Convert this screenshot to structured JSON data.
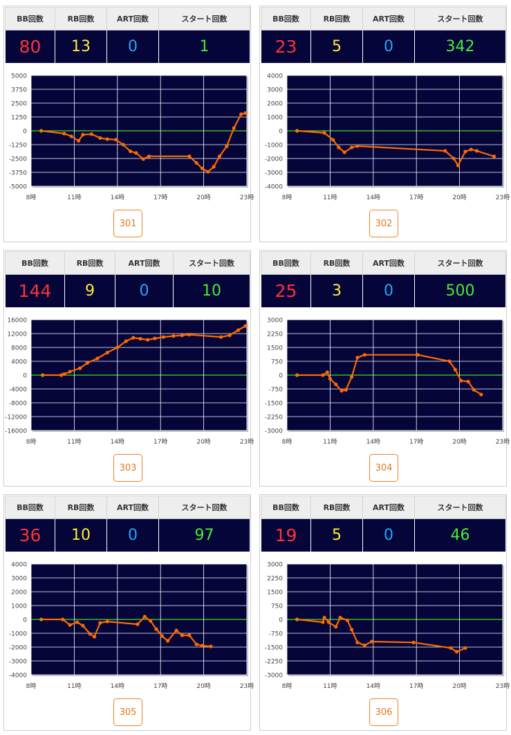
{
  "headers": {
    "bb": "BB回数",
    "rb": "RB回数",
    "art": "ART回数",
    "start": "スタート回数"
  },
  "colors": {
    "bb": "#ff3333",
    "rb": "#ffee33",
    "art": "#22a8ff",
    "start": "#44ee33",
    "plot_bg": "#05053a",
    "grid": "#ffffff",
    "zero_line": "#44dd22",
    "line": "#ff6a00"
  },
  "x_ticks": [
    "8時",
    "11時",
    "14時",
    "17時",
    "20時",
    "23時"
  ],
  "machines": [
    {
      "id": "301",
      "bb": "80",
      "rb": "13",
      "art": "0",
      "start": "1",
      "chart_data": {
        "type": "line",
        "x_range": [
          8,
          23
        ],
        "ylim": [
          -5000,
          5000
        ],
        "y_ticks": [
          "5000",
          "3750",
          "2500",
          "1250",
          "0",
          "-1250",
          "-2500",
          "-3750",
          "-5000"
        ],
        "points": [
          [
            8.7,
            0
          ],
          [
            10.3,
            -250
          ],
          [
            10.8,
            -500
          ],
          [
            11.3,
            -900
          ],
          [
            11.6,
            -350
          ],
          [
            12.2,
            -300
          ],
          [
            12.8,
            -650
          ],
          [
            13.3,
            -750
          ],
          [
            13.9,
            -800
          ],
          [
            14.4,
            -1250
          ],
          [
            14.9,
            -1850
          ],
          [
            15.3,
            -2000
          ],
          [
            15.8,
            -2550
          ],
          [
            16.2,
            -2300
          ],
          [
            19.0,
            -2300
          ],
          [
            19.5,
            -2900
          ],
          [
            19.9,
            -3400
          ],
          [
            20.3,
            -3700
          ],
          [
            20.7,
            -3250
          ],
          [
            21.1,
            -2300
          ],
          [
            21.6,
            -1400
          ],
          [
            22.1,
            250
          ],
          [
            22.6,
            1500
          ],
          [
            22.9,
            1600
          ]
        ]
      }
    },
    {
      "id": "302",
      "bb": "23",
      "rb": "5",
      "art": "0",
      "start": "342",
      "chart_data": {
        "type": "line",
        "x_range": [
          8,
          23
        ],
        "ylim": [
          -4000,
          4000
        ],
        "y_ticks": [
          "4000",
          "3000",
          "2000",
          "1000",
          "0",
          "-1000",
          "-2000",
          "-3000",
          "-4000"
        ],
        "points": [
          [
            8.7,
            0
          ],
          [
            10.6,
            -150
          ],
          [
            11.2,
            -650
          ],
          [
            11.6,
            -1200
          ],
          [
            12.0,
            -1550
          ],
          [
            12.5,
            -1200
          ],
          [
            12.9,
            -1100
          ],
          [
            19.0,
            -1450
          ],
          [
            19.6,
            -2000
          ],
          [
            19.9,
            -2500
          ],
          [
            20.4,
            -1500
          ],
          [
            20.8,
            -1350
          ],
          [
            21.2,
            -1450
          ],
          [
            22.4,
            -1850
          ]
        ]
      }
    },
    {
      "id": "303",
      "bb": "144",
      "rb": "9",
      "art": "0",
      "start": "10",
      "chart_data": {
        "type": "line",
        "x_range": [
          8,
          23
        ],
        "ylim": [
          -16000,
          16000
        ],
        "y_ticks": [
          "16000",
          "12000",
          "8000",
          "4000",
          "0",
          "-4000",
          "-8000",
          "-12000",
          "-16000"
        ],
        "points": [
          [
            8.8,
            0
          ],
          [
            10.1,
            0
          ],
          [
            10.3,
            300
          ],
          [
            10.7,
            1000
          ],
          [
            11.4,
            2000
          ],
          [
            11.9,
            3500
          ],
          [
            12.6,
            4800
          ],
          [
            13.3,
            6500
          ],
          [
            14.0,
            8000
          ],
          [
            14.6,
            9800
          ],
          [
            15.1,
            10800
          ],
          [
            15.6,
            10500
          ],
          [
            16.1,
            10200
          ],
          [
            16.6,
            10600
          ],
          [
            17.2,
            11000
          ],
          [
            17.9,
            11300
          ],
          [
            18.5,
            11500
          ],
          [
            19.0,
            11700
          ],
          [
            21.2,
            11000
          ],
          [
            21.8,
            11500
          ],
          [
            22.4,
            13000
          ],
          [
            22.9,
            14200
          ]
        ]
      }
    },
    {
      "id": "304",
      "bb": "25",
      "rb": "3",
      "art": "0",
      "start": "500",
      "chart_data": {
        "type": "line",
        "x_range": [
          8,
          23
        ],
        "ylim": [
          -3000,
          3000
        ],
        "y_ticks": [
          "3000",
          "2250",
          "1500",
          "750",
          "0",
          "-750",
          "-1500",
          "-2250",
          "-3000"
        ],
        "points": [
          [
            8.7,
            0
          ],
          [
            10.5,
            0
          ],
          [
            10.8,
            150
          ],
          [
            11.0,
            -200
          ],
          [
            11.4,
            -500
          ],
          [
            11.8,
            -850
          ],
          [
            12.1,
            -800
          ],
          [
            12.5,
            -100
          ],
          [
            12.9,
            950
          ],
          [
            13.4,
            1100
          ],
          [
            17.1,
            1100
          ],
          [
            19.3,
            750
          ],
          [
            19.7,
            300
          ],
          [
            20.1,
            -300
          ],
          [
            20.6,
            -350
          ],
          [
            21.0,
            -800
          ],
          [
            21.5,
            -1050
          ]
        ]
      }
    },
    {
      "id": "305",
      "bb": "36",
      "rb": "10",
      "art": "0",
      "start": "97",
      "chart_data": {
        "type": "line",
        "x_range": [
          8,
          23
        ],
        "ylim": [
          -4000,
          4000
        ],
        "y_ticks": [
          "4000",
          "3000",
          "2000",
          "1000",
          "0",
          "-1000",
          "-2000",
          "-3000",
          "-4000"
        ],
        "points": [
          [
            8.7,
            0
          ],
          [
            10.2,
            0
          ],
          [
            10.7,
            -400
          ],
          [
            11.2,
            -200
          ],
          [
            11.6,
            -450
          ],
          [
            12.1,
            -1050
          ],
          [
            12.4,
            -1250
          ],
          [
            12.8,
            -250
          ],
          [
            13.3,
            -150
          ],
          [
            15.4,
            -350
          ],
          [
            15.9,
            200
          ],
          [
            16.3,
            -100
          ],
          [
            16.7,
            -700
          ],
          [
            17.1,
            -1200
          ],
          [
            17.5,
            -1550
          ],
          [
            18.1,
            -800
          ],
          [
            18.5,
            -1150
          ],
          [
            19.0,
            -1150
          ],
          [
            19.5,
            -1800
          ],
          [
            19.9,
            -1900
          ],
          [
            20.5,
            -1950
          ]
        ]
      }
    },
    {
      "id": "306",
      "bb": "19",
      "rb": "5",
      "art": "0",
      "start": "46",
      "chart_data": {
        "type": "line",
        "x_range": [
          8,
          23
        ],
        "ylim": [
          -3000,
          3000
        ],
        "y_ticks": [
          "3000",
          "2250",
          "1500",
          "750",
          "0",
          "-750",
          "-1500",
          "-2250",
          "-3000"
        ],
        "points": [
          [
            8.7,
            0
          ],
          [
            10.5,
            -150
          ],
          [
            10.6,
            100
          ],
          [
            10.9,
            -150
          ],
          [
            11.4,
            -400
          ],
          [
            11.7,
            100
          ],
          [
            12.2,
            -50
          ],
          [
            12.5,
            -550
          ],
          [
            12.9,
            -1250
          ],
          [
            13.4,
            -1400
          ],
          [
            13.9,
            -1200
          ],
          [
            16.8,
            -1250
          ],
          [
            19.4,
            -1550
          ],
          [
            19.8,
            -1750
          ],
          [
            20.4,
            -1550
          ]
        ]
      }
    }
  ]
}
